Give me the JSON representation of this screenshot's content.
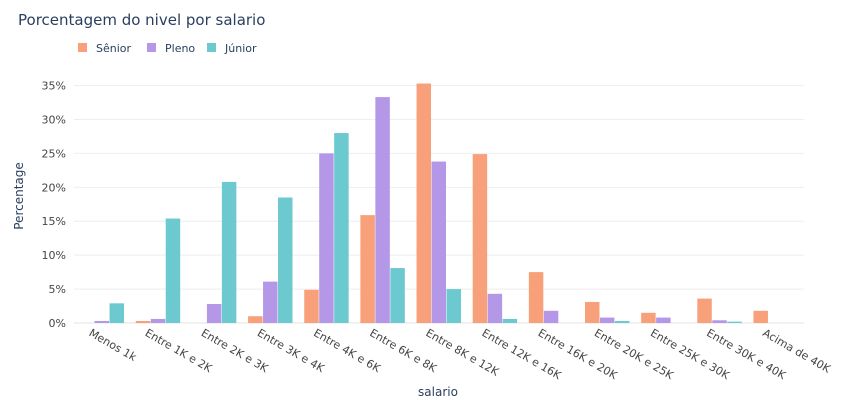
{
  "chart_data": {
    "type": "bar",
    "title": "Porcentagem do nivel por salario",
    "xlabel": "salario",
    "ylabel": "Percentage",
    "ylim": [
      0,
      37
    ],
    "yticks": [
      0,
      5,
      10,
      15,
      20,
      25,
      30,
      35
    ],
    "ytick_suffix": "%",
    "grid": true,
    "legend_position": "top-left",
    "categories": [
      "Menos 1k",
      "Entre 1K e 2K",
      "Entre 2K e 3K",
      "Entre 3K e 4K",
      "Entre 4K e 6K",
      "Entre 6K e 8K",
      "Entre 8K e 12K",
      "Entre 12K e 16K",
      "Entre 16K e 20K",
      "Entre 20K e 25K",
      "Entre 25K e 30K",
      "Entre 30K e 40K",
      "Acima de 40K"
    ],
    "series": [
      {
        "name": "Sênior",
        "color": "#F8A07A",
        "values": [
          0.0,
          0.3,
          0.0,
          1.0,
          4.9,
          15.9,
          35.3,
          24.9,
          7.5,
          3.1,
          1.5,
          3.6,
          1.8
        ]
      },
      {
        "name": "Pleno",
        "color": "#B497E7",
        "values": [
          0.3,
          0.6,
          2.8,
          6.1,
          25.0,
          33.3,
          23.8,
          4.3,
          1.8,
          0.8,
          0.8,
          0.4,
          0.0
        ]
      },
      {
        "name": "Júnior",
        "color": "#6CC9CF",
        "values": [
          2.9,
          15.4,
          20.8,
          18.5,
          28.0,
          8.1,
          5.0,
          0.6,
          0.0,
          0.3,
          0.0,
          0.2,
          0.0
        ]
      }
    ]
  }
}
